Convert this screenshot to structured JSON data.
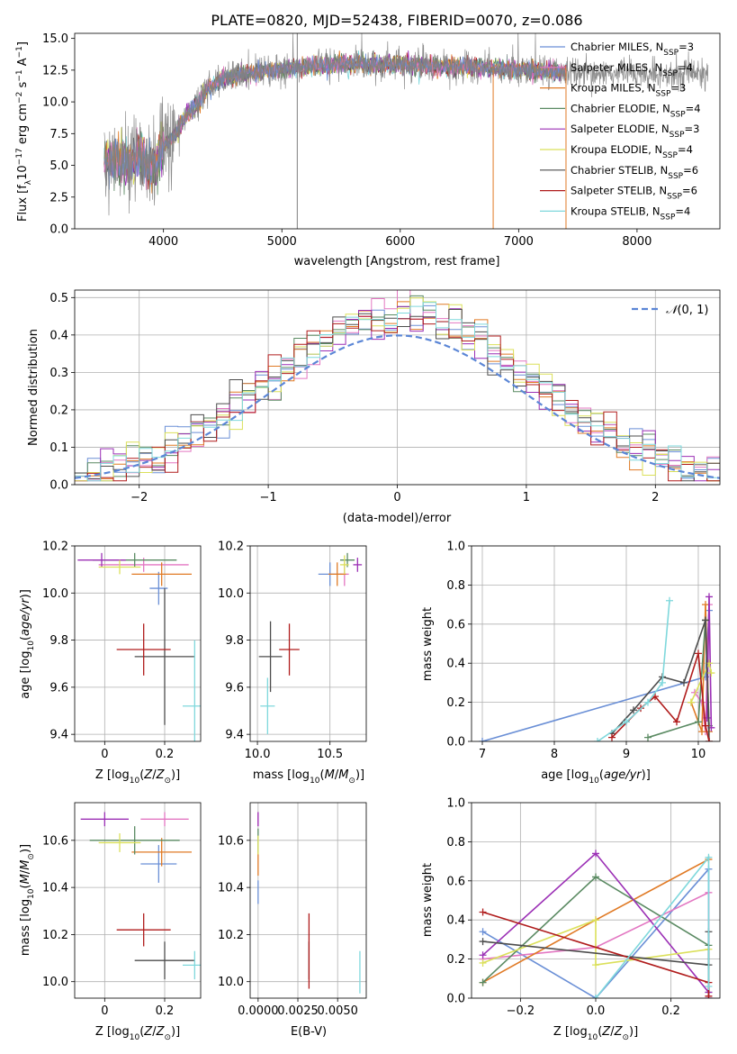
{
  "figure": {
    "title": "PLATE=0820, MJD=52438, FIBERID=0070, z=0.086"
  },
  "colors": {
    "Chabrier MILES": "#6a8fd6",
    "Salpeter MILES": "#e377c2",
    "Kroupa MILES": "#e07a25",
    "Chabrier ELODIE": "#5a8a62",
    "Salpeter ELODIE": "#9b2fb5",
    "Kroupa ELODIE": "#dbe05a",
    "Chabrier STELIB": "#4d4d4d",
    "Salpeter STELIB": "#b01c1c",
    "Kroupa STELIB": "#7fd8dc",
    "data": "#7f7f7f",
    "normal": "#5b86d6"
  },
  "legend_spectrum": [
    {
      "name": "Chabrier MILES",
      "pre": "Chabrier MILES, N",
      "sub": "SSP",
      "post": "=3"
    },
    {
      "name": "Salpeter MILES",
      "pre": "Salpeter MILES, N",
      "sub": "SSP",
      "post": "=4"
    },
    {
      "name": "Kroupa MILES",
      "pre": "Kroupa MILES, N",
      "sub": "SSP",
      "post": "=3"
    },
    {
      "name": "Chabrier ELODIE",
      "pre": "Chabrier ELODIE, N",
      "sub": "SSP",
      "post": "=4"
    },
    {
      "name": "Salpeter ELODIE",
      "pre": "Salpeter ELODIE, N",
      "sub": "SSP",
      "post": "=3"
    },
    {
      "name": "Kroupa ELODIE",
      "pre": "Kroupa ELODIE, N",
      "sub": "SSP",
      "post": "=4"
    },
    {
      "name": "Chabrier STELIB",
      "pre": "Chabrier STELIB, N",
      "sub": "SSP",
      "post": "=6"
    },
    {
      "name": "Salpeter STELIB",
      "pre": "Salpeter STELIB, N",
      "sub": "SSP",
      "post": "=6"
    },
    {
      "name": "Kroupa STELIB",
      "pre": "Kroupa STELIB, N",
      "sub": "SSP",
      "post": "=4"
    }
  ],
  "chart_data": [
    {
      "id": "spectrum",
      "type": "line",
      "title": "PLATE=0820, MJD=52438, FIBERID=0070, z=0.086",
      "xlabel": "wavelength [Angstrom, rest frame]",
      "ylabel": "Flux [fλ10⁻¹⁷ erg cm⁻² s⁻¹ A⁻¹]",
      "xlim": [
        3250,
        8700
      ],
      "ylim": [
        0,
        15.4
      ],
      "xticks": [
        4000,
        5000,
        6000,
        7000,
        8000
      ],
      "yticks": [
        0.0,
        2.5,
        5.0,
        7.5,
        10.0,
        12.5,
        15.0
      ],
      "ytick_labels": [
        "0.0",
        "2.5",
        "5.0",
        "7.5",
        "10.0",
        "12.5",
        "15.0"
      ],
      "grid": false,
      "legend_position": "top-right",
      "continuum": {
        "x": [
          3500,
          3600,
          3700,
          3800,
          3900,
          4000,
          4100,
          4200,
          4300,
          4400,
          4500,
          4700,
          5000,
          5500,
          6000,
          6500,
          7000,
          7500
        ],
        "y": [
          5.0,
          5.5,
          5.0,
          5.8,
          4.5,
          6.5,
          7.5,
          9.0,
          10.0,
          11.3,
          11.8,
          12.2,
          12.6,
          13.0,
          12.9,
          12.8,
          12.5,
          12.3
        ]
      },
      "data_extent": [
        3500,
        8600
      ],
      "model_extent": [
        3500,
        7400
      ]
    },
    {
      "id": "residuals",
      "type": "histogram",
      "xlabel": "(data-model)/error",
      "ylabel": "Normed distribution",
      "xlim": [
        -2.5,
        2.5
      ],
      "ylim": [
        0,
        0.52
      ],
      "xticks": [
        -2,
        -1,
        0,
        1,
        2
      ],
      "xtick_labels": [
        "−2",
        "−1",
        "0",
        "1",
        "2"
      ],
      "yticks": [
        0.0,
        0.1,
        0.2,
        0.3,
        0.4,
        0.5
      ],
      "grid": true,
      "legend_position": "top-right",
      "legend": "N(0,1)",
      "bins": [
        -2.5,
        2.5,
        50
      ],
      "gaussian": {
        "mu": 0,
        "sigma": 1
      }
    },
    {
      "id": "age-vs-Z",
      "type": "errorbar",
      "xlabel": "Z [log10(Z/Z⊙)]",
      "ylabel": "age [log10(age/yr)]",
      "xlim": [
        -0.1,
        0.32
      ],
      "ylim": [
        9.37,
        10.2
      ],
      "xticks": [
        0.0,
        0.2
      ],
      "yticks": [
        9.4,
        9.6,
        9.8,
        10.0,
        10.2
      ],
      "grid": true,
      "points": [
        {
          "name": "Chabrier MILES",
          "x": 0.18,
          "xerr": 0.03,
          "y": 10.02,
          "yerr": 0.07
        },
        {
          "name": "Salpeter MILES",
          "x": 0.13,
          "xerr": 0.15,
          "y": 10.12,
          "yerr": 0.03
        },
        {
          "name": "Kroupa MILES",
          "x": 0.19,
          "xerr": 0.1,
          "y": 10.08,
          "yerr": 0.05
        },
        {
          "name": "Chabrier ELODIE",
          "x": 0.1,
          "xerr": 0.14,
          "y": 10.14,
          "yerr": 0.03
        },
        {
          "name": "Salpeter ELODIE",
          "x": -0.01,
          "xerr": 0.08,
          "y": 10.14,
          "yerr": 0.03
        },
        {
          "name": "Kroupa ELODIE",
          "x": 0.05,
          "xerr": 0.07,
          "y": 10.11,
          "yerr": 0.03
        },
        {
          "name": "Chabrier STELIB",
          "x": 0.2,
          "xerr": 0.1,
          "y": 9.73,
          "yerr": 0.29
        },
        {
          "name": "Salpeter STELIB",
          "x": 0.13,
          "xerr": 0.09,
          "y": 9.76,
          "yerr": 0.11
        },
        {
          "name": "Kroupa STELIB",
          "x": 0.3,
          "xerr": 0.04,
          "y": 9.52,
          "yerr": 0.28
        }
      ]
    },
    {
      "id": "age-vs-mass",
      "type": "errorbar",
      "xlabel": "mass [log10(M/M⊙)]",
      "ylabel": "",
      "xlim": [
        9.95,
        10.75
      ],
      "ylim": [
        9.37,
        10.2
      ],
      "xticks": [
        10.0,
        10.5
      ],
      "yticks": [
        9.4,
        9.6,
        9.8,
        10.0,
        10.2
      ],
      "grid": true,
      "points": [
        {
          "name": "Chabrier MILES",
          "x": 10.5,
          "xerr": 0.08,
          "y": 10.08,
          "yerr": 0.05
        },
        {
          "name": "Salpeter MILES",
          "x": 10.6,
          "xerr": 0.03,
          "y": 10.08,
          "yerr": 0.05
        },
        {
          "name": "Kroupa MILES",
          "x": 10.55,
          "xerr": 0.06,
          "y": 10.08,
          "yerr": 0.05
        },
        {
          "name": "Chabrier ELODIE",
          "x": 10.62,
          "xerr": 0.05,
          "y": 10.14,
          "yerr": 0.03
        },
        {
          "name": "Salpeter ELODIE",
          "x": 10.69,
          "xerr": 0.03,
          "y": 10.12,
          "yerr": 0.03
        },
        {
          "name": "Kroupa ELODIE",
          "x": 10.6,
          "xerr": 0.03,
          "y": 10.12,
          "yerr": 0.04
        },
        {
          "name": "Chabrier STELIB",
          "x": 10.09,
          "xerr": 0.08,
          "y": 9.73,
          "yerr": 0.15
        },
        {
          "name": "Salpeter STELIB",
          "x": 10.22,
          "xerr": 0.07,
          "y": 9.76,
          "yerr": 0.11
        },
        {
          "name": "Kroupa STELIB",
          "x": 10.07,
          "xerr": 0.05,
          "y": 9.52,
          "yerr": 0.12
        }
      ]
    },
    {
      "id": "mass-vs-Z",
      "type": "errorbar",
      "xlabel": "Z [log10(Z/Z⊙)]",
      "ylabel": "mass [log10(M/M⊙)]",
      "xlim": [
        -0.1,
        0.32
      ],
      "ylim": [
        9.93,
        10.76
      ],
      "xticks": [
        0.0,
        0.2
      ],
      "yticks": [
        10.0,
        10.2,
        10.4,
        10.6
      ],
      "grid": true,
      "points": [
        {
          "name": "Chabrier MILES",
          "x": 0.18,
          "xerr": 0.06,
          "y": 10.5,
          "yerr": 0.08
        },
        {
          "name": "Salpeter MILES",
          "x": 0.2,
          "xerr": 0.08,
          "y": 10.69,
          "yerr": 0.03
        },
        {
          "name": "Kroupa MILES",
          "x": 0.19,
          "xerr": 0.1,
          "y": 10.55,
          "yerr": 0.06
        },
        {
          "name": "Chabrier ELODIE",
          "x": 0.1,
          "xerr": 0.15,
          "y": 10.6,
          "yerr": 0.06
        },
        {
          "name": "Salpeter ELODIE",
          "x": 0.0,
          "xerr": 0.08,
          "y": 10.69,
          "yerr": 0.03
        },
        {
          "name": "Kroupa ELODIE",
          "x": 0.05,
          "xerr": 0.07,
          "y": 10.59,
          "yerr": 0.04
        },
        {
          "name": "Chabrier STELIB",
          "x": 0.2,
          "xerr": 0.1,
          "y": 10.09,
          "yerr": 0.08
        },
        {
          "name": "Salpeter STELIB",
          "x": 0.13,
          "xerr": 0.09,
          "y": 10.22,
          "yerr": 0.07
        },
        {
          "name": "Kroupa STELIB",
          "x": 0.3,
          "xerr": 0.04,
          "y": 10.07,
          "yerr": 0.06
        }
      ]
    },
    {
      "id": "mass-vs-ebv",
      "type": "errorbar",
      "xlabel": "E(B-V)",
      "ylabel": "",
      "xlim": [
        -0.0005,
        0.0068
      ],
      "ylim": [
        9.93,
        10.76
      ],
      "xticks": [
        0.0,
        0.0025,
        0.005
      ],
      "xtick_labels": [
        "0.0000",
        "0.0025",
        "0.0050"
      ],
      "yticks": [
        10.0,
        10.2,
        10.4,
        10.6
      ],
      "grid": true,
      "points": [
        {
          "name": "Chabrier MILES",
          "x": 0.0,
          "xerr": 0,
          "y": 10.38,
          "yerr": 0.05
        },
        {
          "name": "Salpeter MILES",
          "x": 0.0,
          "xerr": 0,
          "y": 10.69,
          "yerr": 0.03
        },
        {
          "name": "Kroupa MILES",
          "x": 0.0,
          "xerr": 0,
          "y": 10.5,
          "yerr": 0.05
        },
        {
          "name": "Chabrier ELODIE",
          "x": 0.0,
          "xerr": 0,
          "y": 10.6,
          "yerr": 0.05
        },
        {
          "name": "Salpeter ELODIE",
          "x": 0.0,
          "xerr": 0,
          "y": 10.69,
          "yerr": 0.03
        },
        {
          "name": "Kroupa ELODIE",
          "x": 0.0,
          "xerr": 0,
          "y": 10.58,
          "yerr": 0.04
        },
        {
          "name": "Chabrier STELIB",
          "x": 0.0032,
          "xerr": 0,
          "y": 10.09,
          "yerr": 0.08
        },
        {
          "name": "Salpeter STELIB",
          "x": 0.0032,
          "xerr": 0,
          "y": 10.13,
          "yerr": 0.16
        },
        {
          "name": "Kroupa STELIB",
          "x": 0.0064,
          "xerr": 0,
          "y": 10.04,
          "yerr": 0.09
        }
      ]
    },
    {
      "id": "massweight-vs-age",
      "type": "line",
      "xlabel": "age [log10(age/yr)]",
      "ylabel": "mass weight",
      "xlim": [
        6.85,
        10.3
      ],
      "ylim": [
        0,
        1.0
      ],
      "xticks": [
        7,
        8,
        9,
        10
      ],
      "yticks": [
        0.0,
        0.2,
        0.4,
        0.6,
        0.8,
        1.0
      ],
      "grid": true,
      "series": [
        {
          "name": "Chabrier MILES",
          "x": [
            7.0,
            10.1,
            10.15
          ],
          "y": [
            0.0,
            0.33,
            0.67
          ]
        },
        {
          "name": "Salpeter MILES",
          "x": [
            9.95,
            10.05,
            10.1,
            10.15
          ],
          "y": [
            0.25,
            0.2,
            0.05,
            0.7
          ]
        },
        {
          "name": "Kroupa MILES",
          "x": [
            9.9,
            10.05,
            10.1,
            10.15
          ],
          "y": [
            0.2,
            0.05,
            0.7,
            0.05
          ]
        },
        {
          "name": "Chabrier ELODIE",
          "x": [
            9.3,
            10.0,
            10.1,
            10.15
          ],
          "y": [
            0.02,
            0.1,
            0.62,
            0.08
          ]
        },
        {
          "name": "Salpeter ELODIE",
          "x": [
            10.12,
            10.15,
            10.18
          ],
          "y": [
            0.12,
            0.74,
            0.07
          ]
        },
        {
          "name": "Kroupa ELODIE",
          "x": [
            9.9,
            10.15,
            10.18
          ],
          "y": [
            0.2,
            0.4,
            0.35
          ]
        },
        {
          "name": "Chabrier STELIB",
          "x": [
            8.8,
            9.1,
            9.5,
            9.8,
            10.1,
            10.15
          ],
          "y": [
            0.04,
            0.16,
            0.33,
            0.3,
            0.62,
            0.0
          ]
        },
        {
          "name": "Salpeter STELIB",
          "x": [
            8.8,
            9.2,
            9.4,
            9.7,
            10.0,
            10.1,
            10.15
          ],
          "y": [
            0.02,
            0.17,
            0.23,
            0.1,
            0.45,
            0.08,
            0.0
          ]
        },
        {
          "name": "Kroupa STELIB",
          "x": [
            8.6,
            9.0,
            9.3,
            9.5,
            9.6
          ],
          "y": [
            0.0,
            0.1,
            0.2,
            0.3,
            0.72
          ]
        }
      ]
    },
    {
      "id": "massweight-vs-Z",
      "type": "line",
      "xlabel": "Z [log10(Z/Z⊙)]",
      "ylabel": "mass weight",
      "xlim": [
        -0.33,
        0.33
      ],
      "ylim": [
        0,
        1.0
      ],
      "xticks": [
        -0.2,
        0.0,
        0.2
      ],
      "xtick_labels": [
        "−0.2",
        "0.0",
        "0.2"
      ],
      "yticks": [
        0.0,
        0.2,
        0.4,
        0.6,
        0.8,
        1.0
      ],
      "grid": true,
      "series": [
        {
          "name": "Chabrier MILES",
          "x": [
            -0.3,
            0.0,
            0.3,
            0.3
          ],
          "y": [
            0.34,
            0.0,
            0.66,
            0.0
          ]
        },
        {
          "name": "Salpeter MILES",
          "x": [
            -0.3,
            0.0,
            0.3,
            0.3
          ],
          "y": [
            0.2,
            0.26,
            0.54,
            0.0
          ]
        },
        {
          "name": "Kroupa MILES",
          "x": [
            -0.3,
            0.0,
            0.3
          ],
          "y": [
            0.08,
            0.4,
            0.71
          ]
        },
        {
          "name": "Chabrier ELODIE",
          "x": [
            -0.3,
            0.0,
            0.3,
            0.3
          ],
          "y": [
            0.08,
            0.62,
            0.27,
            0.03
          ]
        },
        {
          "name": "Salpeter ELODIE",
          "x": [
            -0.3,
            0.0,
            0.3
          ],
          "y": [
            0.22,
            0.74,
            0.03
          ]
        },
        {
          "name": "Kroupa ELODIE",
          "x": [
            -0.3,
            0.0,
            0.0,
            0.3
          ],
          "y": [
            0.18,
            0.4,
            0.17,
            0.25
          ]
        },
        {
          "name": "Chabrier STELIB",
          "x": [
            -0.3,
            0.3,
            0.3
          ],
          "y": [
            0.29,
            0.17,
            0.34
          ]
        },
        {
          "name": "Salpeter STELIB",
          "x": [
            -0.3,
            0.3,
            0.3
          ],
          "y": [
            0.44,
            0.08,
            0.01
          ]
        },
        {
          "name": "Kroupa STELIB",
          "x": [
            0.0,
            0.3,
            0.3
          ],
          "y": [
            0.0,
            0.72,
            0.06
          ]
        }
      ]
    }
  ]
}
